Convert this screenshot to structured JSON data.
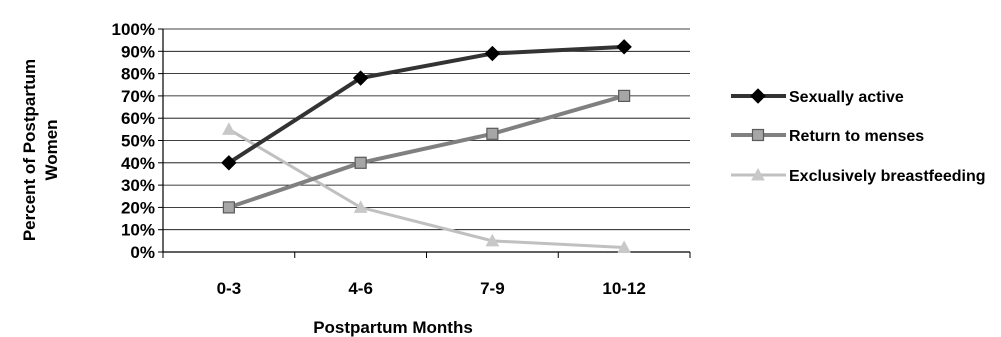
{
  "chart_data": {
    "type": "line",
    "categories": [
      "0-3",
      "4-6",
      "7-9",
      "10-12"
    ],
    "series": [
      {
        "name": "Sexually active",
        "values": [
          40,
          78,
          89,
          92
        ],
        "color": "#333333",
        "marker": "diamond"
      },
      {
        "name": "Return to menses",
        "values": [
          20,
          40,
          53,
          70
        ],
        "color": "#808080",
        "marker": "square"
      },
      {
        "name": "Exclusively breastfeeding",
        "values": [
          55,
          20,
          5,
          2
        ],
        "color": "#c0c0c0",
        "marker": "triangle"
      }
    ],
    "xlabel": "Postpartum Months",
    "ylabel_lines": [
      "Percent of Postpartum",
      "Women"
    ],
    "ylim": [
      0,
      100
    ],
    "yticks": [
      "0%",
      "10%",
      "20%",
      "30%",
      "40%",
      "50%",
      "60%",
      "70%",
      "80%",
      "90%",
      "100%"
    ],
    "grid": true,
    "legend_position": "right"
  }
}
